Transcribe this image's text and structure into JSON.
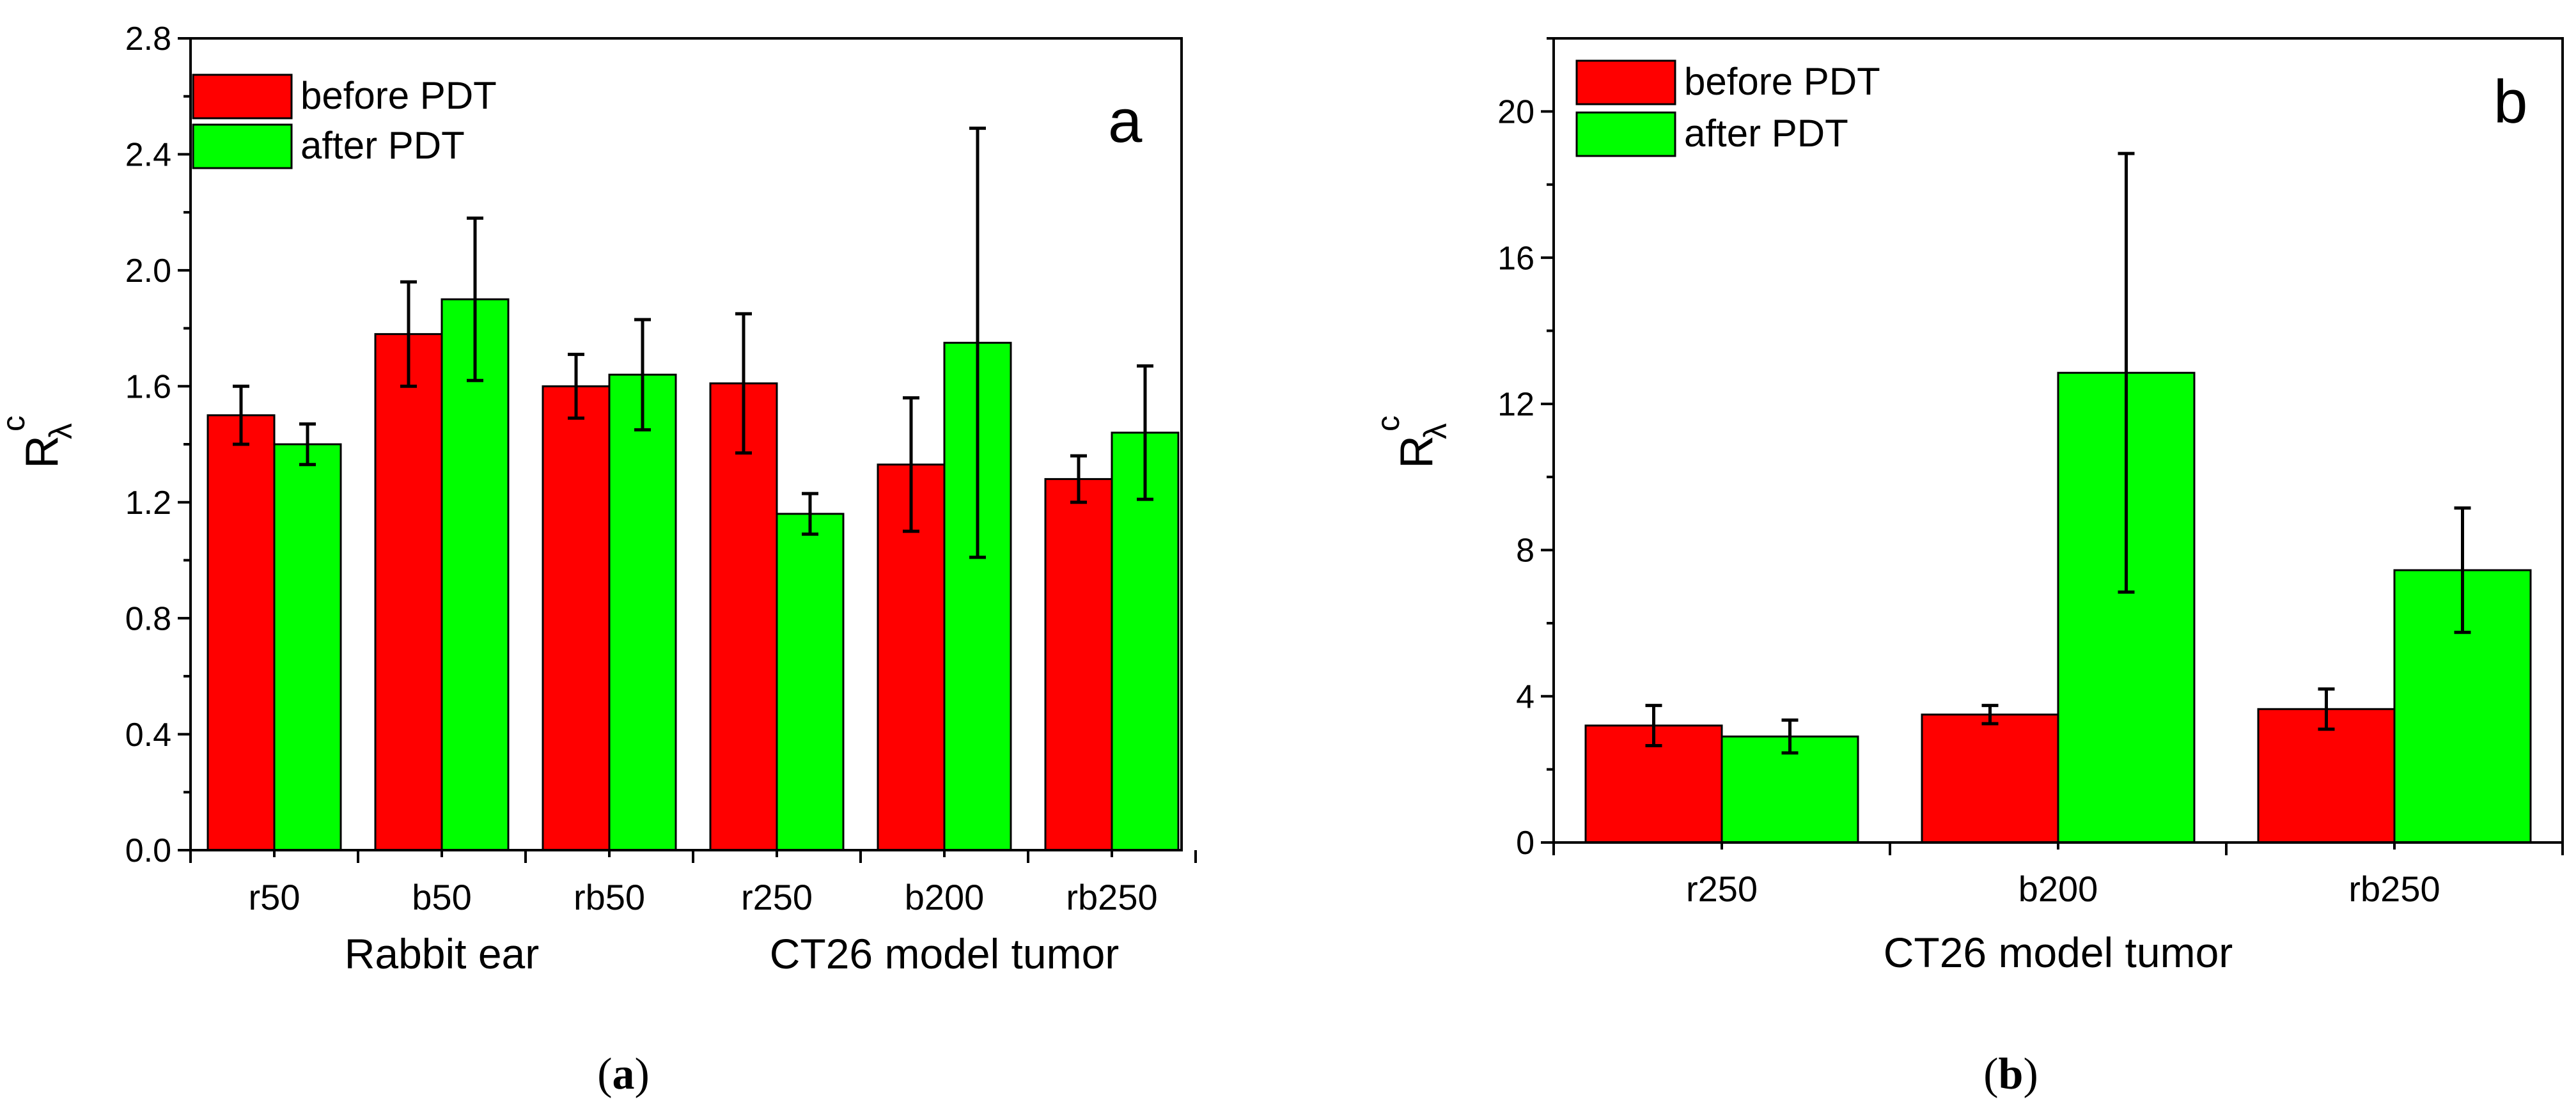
{
  "chart_data": [
    {
      "type": "bar",
      "panel_letter": "a",
      "caption_letter": "a",
      "ylim": [
        0,
        2.8
      ],
      "yticks": [
        "0.0",
        "0.4",
        "0.8",
        "1.2",
        "1.6",
        "2.0",
        "2.4",
        "2.8"
      ],
      "ylabel": {
        "base": "R",
        "sub": "λ",
        "sup": "c"
      },
      "categories": [
        "r50",
        "b50",
        "rb50",
        "r250",
        "b200",
        "rb250"
      ],
      "groups": [
        {
          "label": "Rabbit ear",
          "from": 0,
          "to": 2
        },
        {
          "label": "CT26 model tumor",
          "from": 3,
          "to": 5
        }
      ],
      "series": [
        {
          "name": "before PDT",
          "color": "#ff0000",
          "values": [
            1.5,
            1.78,
            1.6,
            1.61,
            1.33,
            1.28
          ],
          "errors": [
            0.1,
            0.18,
            0.11,
            0.24,
            0.23,
            0.08
          ]
        },
        {
          "name": "after PDT",
          "color": "#00ff00",
          "values": [
            1.4,
            1.9,
            1.64,
            1.16,
            1.75,
            1.44
          ],
          "errors": [
            0.07,
            0.28,
            0.19,
            0.07,
            0.74,
            0.23
          ]
        }
      ],
      "legend_position": "top-left",
      "grid": false
    },
    {
      "type": "bar",
      "panel_letter": "b",
      "caption_letter": "b",
      "ylim": [
        0,
        22
      ],
      "yticks": [
        "0",
        "4",
        "8",
        "12",
        "16",
        "20"
      ],
      "ylabel": {
        "base": "R",
        "sub": "λ",
        "sup": "c"
      },
      "categories": [
        "r250",
        "b200",
        "rb250"
      ],
      "xlabel": "CT26 model tumor",
      "series": [
        {
          "name": "before PDT",
          "color": "#ff0000",
          "values": [
            3.2,
            3.5,
            3.65
          ],
          "errors": [
            0.55,
            0.25,
            0.55
          ]
        },
        {
          "name": "after PDT",
          "color": "#00ff00",
          "values": [
            2.9,
            12.85,
            7.45
          ],
          "errors": [
            0.45,
            6.0,
            1.7
          ]
        }
      ],
      "legend_position": "top-left",
      "grid": false
    }
  ]
}
